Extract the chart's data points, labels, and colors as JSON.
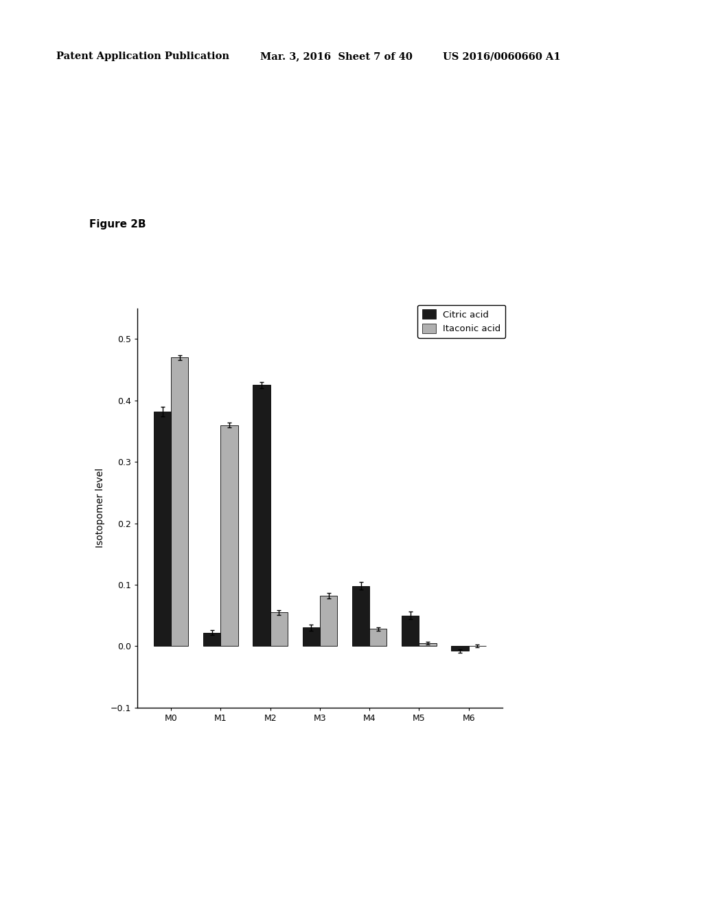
{
  "categories": [
    "M0",
    "M1",
    "M2",
    "M3",
    "M4",
    "M5",
    "M6"
  ],
  "citric_acid": [
    0.382,
    0.022,
    0.425,
    0.03,
    0.098,
    0.05,
    -0.008
  ],
  "itaconic_acid": [
    0.47,
    0.36,
    0.055,
    0.082,
    0.028,
    0.005,
    0.0
  ],
  "citric_acid_err": [
    0.008,
    0.004,
    0.005,
    0.005,
    0.006,
    0.006,
    0.003
  ],
  "itaconic_acid_err": [
    0.004,
    0.004,
    0.004,
    0.004,
    0.003,
    0.002,
    0.002
  ],
  "citric_color": "#1a1a1a",
  "itaconic_color": "#b0b0b0",
  "ylabel": "Isotopomer level",
  "ylim": [
    -0.1,
    0.55
  ],
  "yticks": [
    -0.1,
    0,
    0.1,
    0.2,
    0.3,
    0.4,
    0.5
  ],
  "legend_labels": [
    "Citric acid",
    "Itaconic acid"
  ],
  "figure_label": "Figure 2B",
  "header_left": "Patent Application Publication",
  "header_mid": "Mar. 3, 2016  Sheet 7 of 40",
  "header_right": "US 2016/0060660 A1",
  "bar_width": 0.35,
  "background_color": "#ffffff"
}
